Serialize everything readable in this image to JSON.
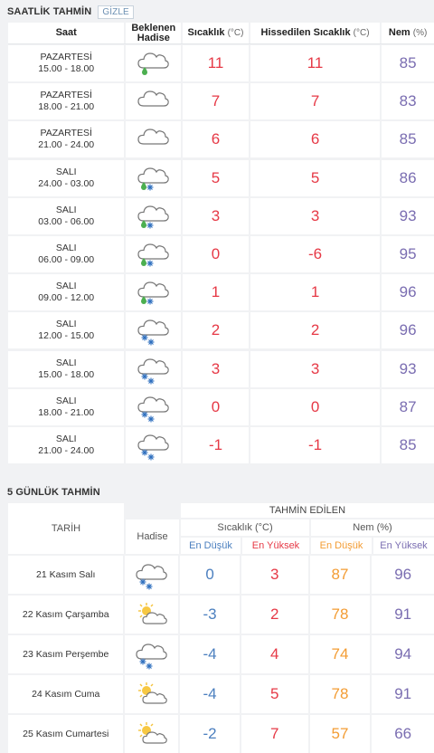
{
  "hourly": {
    "title": "SAATLİK TAHMİN",
    "hide_label": "GİZLE",
    "headers": {
      "saat": "Saat",
      "hadise_line1": "Beklenen",
      "hadise_line2": "Hadise",
      "sicaklik": "Sıcaklık",
      "sicaklik_unit": "(°C)",
      "hissedilen": "Hissedilen Sıcaklık",
      "hissedilen_unit": "(°C)",
      "nem": "Nem",
      "nem_unit": "(%)"
    },
    "rows": [
      {
        "day": "PAZARTESİ",
        "time": "15.00 - 18.00",
        "icon": "rain-cloud-icon",
        "temp": "11",
        "feels": "11",
        "humidity": "85"
      },
      {
        "day": "PAZARTESİ",
        "time": "18.00 - 21.00",
        "icon": "cloud-icon",
        "temp": "7",
        "feels": "7",
        "humidity": "83"
      },
      {
        "day": "PAZARTESİ",
        "time": "21.00 - 24.00",
        "icon": "cloud-icon",
        "temp": "6",
        "feels": "6",
        "humidity": "85"
      },
      {
        "day": "SALI",
        "time": "24.00 - 03.00",
        "icon": "sleet-cloud-icon",
        "temp": "5",
        "feels": "5",
        "humidity": "86"
      },
      {
        "day": "SALI",
        "time": "03.00 - 06.00",
        "icon": "sleet-cloud-icon",
        "temp": "3",
        "feels": "3",
        "humidity": "93"
      },
      {
        "day": "SALI",
        "time": "06.00 - 09.00",
        "icon": "sleet-cloud-icon",
        "temp": "0",
        "feels": "-6",
        "humidity": "95"
      },
      {
        "day": "SALI",
        "time": "09.00 - 12.00",
        "icon": "sleet-cloud-icon",
        "temp": "1",
        "feels": "1",
        "humidity": "96"
      },
      {
        "day": "SALI",
        "time": "12.00 - 15.00",
        "icon": "snow-cloud-icon",
        "temp": "2",
        "feels": "2",
        "humidity": "96"
      },
      {
        "day": "SALI",
        "time": "15.00 - 18.00",
        "icon": "snow-cloud-icon",
        "temp": "3",
        "feels": "3",
        "humidity": "93"
      },
      {
        "day": "SALI",
        "time": "18.00 - 21.00",
        "icon": "snow-cloud-icon",
        "temp": "0",
        "feels": "0",
        "humidity": "87"
      },
      {
        "day": "SALI",
        "time": "21.00 - 24.00",
        "icon": "snow-cloud-icon",
        "temp": "-1",
        "feels": "-1",
        "humidity": "85"
      }
    ]
  },
  "daily": {
    "title": "5 GÜNLÜK TAHMİN",
    "headers": {
      "tarih": "TARİH",
      "hadise": "Hadise",
      "tahmin": "TAHMİN EDİLEN",
      "sicaklik": "Sıcaklık (°C)",
      "nem": "Nem (%)",
      "en_dusuk": "En Düşük",
      "en_yuksek": "En Yüksek"
    },
    "rows": [
      {
        "date": "21 Kasım Salı",
        "icon": "snow-cloud-icon",
        "min": "0",
        "max": "3",
        "hum_min": "87",
        "hum_max": "96"
      },
      {
        "date": "22 Kasım Çarşamba",
        "icon": "partly-sunny-icon",
        "min": "-3",
        "max": "2",
        "hum_min": "78",
        "hum_max": "91"
      },
      {
        "date": "23 Kasım Perşembe",
        "icon": "snow-cloud-icon",
        "min": "-4",
        "max": "4",
        "hum_min": "74",
        "hum_max": "94"
      },
      {
        "date": "24 Kasım Cuma",
        "icon": "partly-sunny-icon",
        "min": "-4",
        "max": "5",
        "hum_min": "78",
        "hum_max": "91"
      },
      {
        "date": "25 Kasım Cumartesi",
        "icon": "partly-sunny-icon",
        "min": "-2",
        "max": "7",
        "hum_min": "57",
        "hum_max": "66"
      }
    ]
  },
  "colors": {
    "temperature": "#e63946",
    "humidity": "#7a6db1",
    "low_label": "#f39c33",
    "high_label": "#e63946",
    "blue_value": "#4b7fbf"
  }
}
